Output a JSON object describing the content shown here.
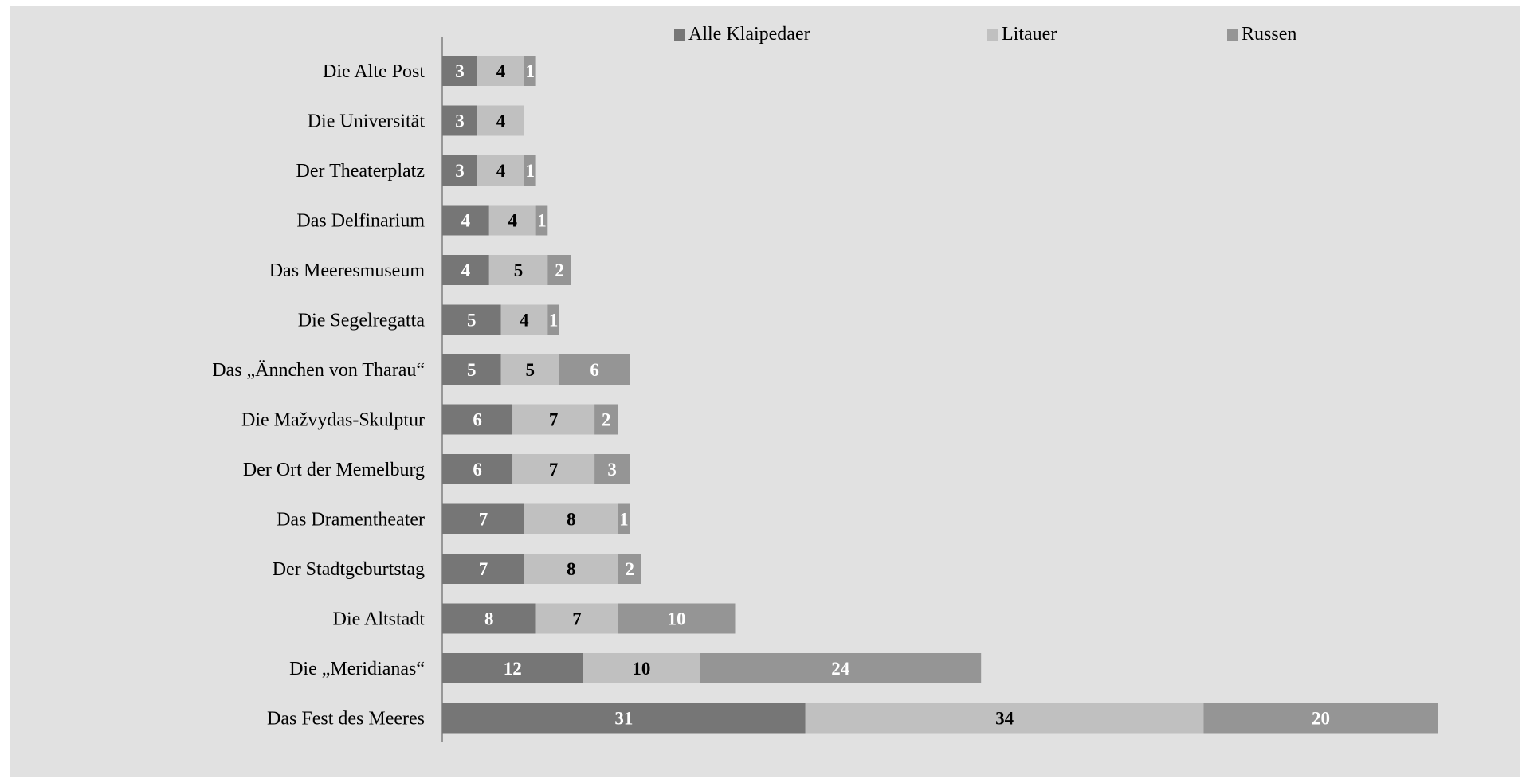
{
  "chart_data": {
    "type": "bar",
    "orientation": "horizontal",
    "stacked": true,
    "title": "",
    "xlabel": "",
    "ylabel": "",
    "grid": false,
    "legend_position": "top",
    "categories": [
      "Die Alte Post",
      "Die Universität",
      "Der Theaterplatz",
      "Das Delfinarium",
      "Das Meeresmuseum",
      "Die Segelregatta",
      "Das „Ännchen von Tharau“",
      "Die Mažvydas-Skulptur",
      "Der Ort der Memelburg",
      "Das Dramentheater",
      "Der Stadtgeburtstag",
      "Die Altstadt",
      "Die „Meridianas“",
      "Das Fest des Meeres"
    ],
    "series": [
      {
        "name": "Alle Klaipedaer",
        "color": "#767676",
        "label_color": "#ffffff",
        "values": [
          3,
          3,
          3,
          4,
          4,
          5,
          5,
          6,
          6,
          7,
          7,
          8,
          12,
          31
        ]
      },
      {
        "name": "Litauer",
        "color": "#c0c0c0",
        "label_color": "#000000",
        "values": [
          4,
          4,
          4,
          4,
          5,
          4,
          5,
          7,
          7,
          8,
          8,
          7,
          10,
          34
        ]
      },
      {
        "name": "Russen",
        "color": "#959595",
        "label_color": "#ffffff",
        "values": [
          1,
          0,
          1,
          1,
          2,
          1,
          6,
          2,
          3,
          1,
          2,
          10,
          24,
          20
        ]
      }
    ],
    "xlim": [
      0,
      85
    ]
  }
}
